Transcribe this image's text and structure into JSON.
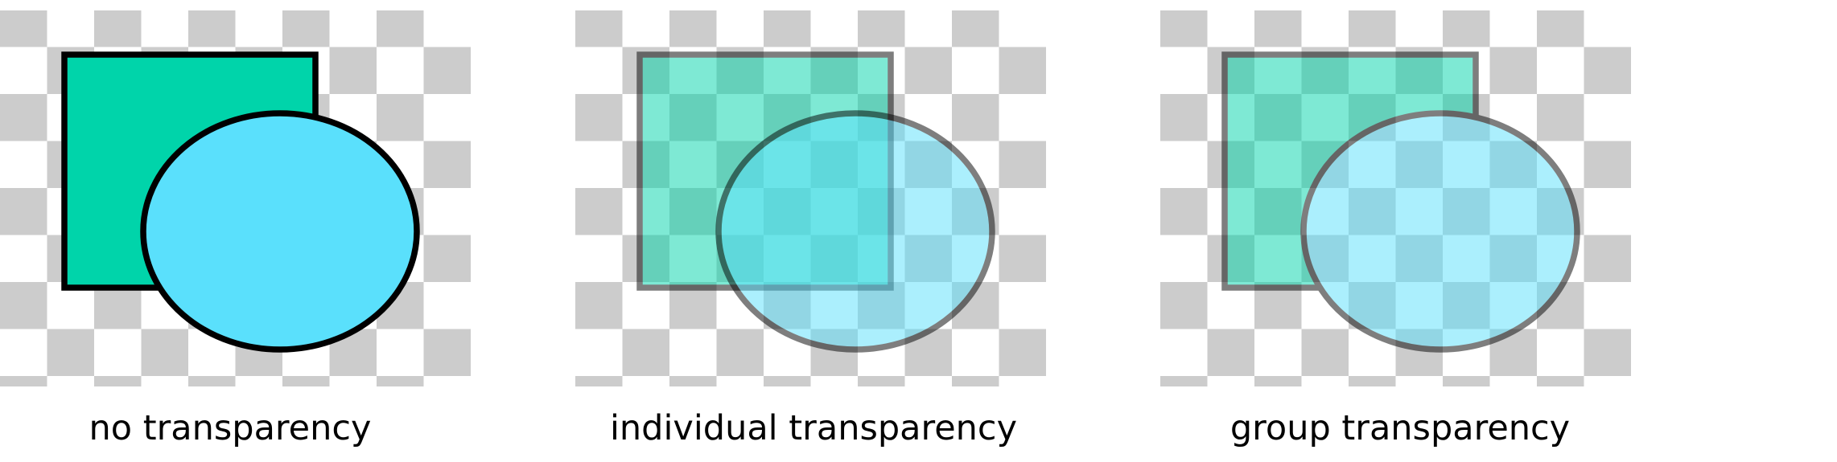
{
  "colors": {
    "background": "#ffffff",
    "checker": "#cccccc",
    "square_fill": "#00d4aa",
    "circle_fill": "#5ae0fc",
    "outline": "#000000"
  },
  "panels": [
    {
      "caption": "no transparency",
      "mode": "none",
      "opacity": 1.0
    },
    {
      "caption": "individual transparency",
      "mode": "individual",
      "opacity": 0.5
    },
    {
      "caption": "group transparency",
      "mode": "group",
      "opacity": 0.5
    }
  ]
}
